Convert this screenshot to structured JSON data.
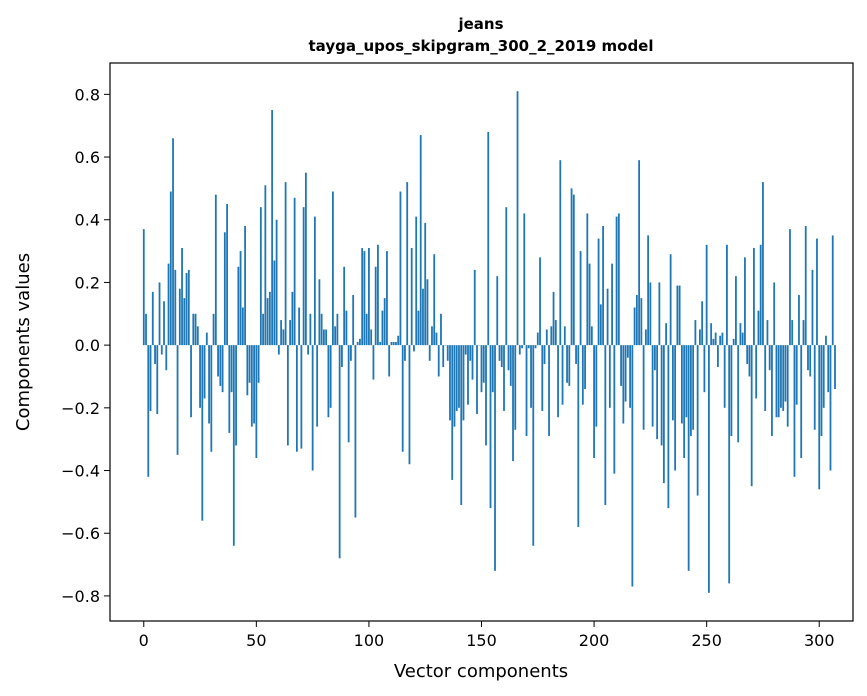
{
  "chart_data": {
    "type": "bar",
    "title": "jeans",
    "subtitle": "tayga_upos_skipgram_300_2_2019 model",
    "xlabel": "Vector components",
    "ylabel": "Components values",
    "xlim": [
      -15,
      315
    ],
    "ylim": [
      -0.88,
      0.9
    ],
    "xticks": [
      0,
      50,
      100,
      150,
      200,
      250,
      300
    ],
    "yticks": [
      -0.8,
      -0.6,
      -0.4,
      -0.2,
      0.0,
      0.2,
      0.4,
      0.6,
      0.8
    ],
    "ytick_labels": [
      "−0.8",
      "−0.6",
      "−0.4",
      "−0.2",
      "0.0",
      "0.2",
      "0.4",
      "0.6",
      "0.8"
    ],
    "bar_color": "#1f77b4",
    "grid": false,
    "values": [
      0.37,
      0.1,
      -0.42,
      -0.21,
      0.17,
      -0.06,
      -0.22,
      0.2,
      -0.03,
      0.14,
      -0.08,
      0.26,
      0.49,
      0.66,
      0.24,
      -0.35,
      0.18,
      0.31,
      0.15,
      0.23,
      0.24,
      -0.23,
      0.1,
      0.1,
      0.06,
      -0.2,
      -0.56,
      -0.17,
      0.04,
      -0.25,
      -0.34,
      0.1,
      0.48,
      -0.1,
      -0.13,
      -0.15,
      0.36,
      0.45,
      -0.28,
      -0.15,
      -0.64,
      -0.32,
      0.25,
      0.3,
      0.12,
      0.38,
      -0.16,
      -0.12,
      -0.26,
      -0.25,
      -0.36,
      -0.12,
      0.44,
      0.1,
      0.51,
      0.15,
      0.17,
      0.75,
      0.27,
      0.4,
      -0.03,
      0.08,
      0.05,
      0.52,
      -0.32,
      0.08,
      0.17,
      0.47,
      -0.34,
      0.12,
      -0.33,
      0.44,
      0.55,
      -0.03,
      0.1,
      -0.4,
      0.41,
      -0.26,
      0.21,
      0.1,
      0.05,
      0.05,
      -0.23,
      -0.2,
      0.49,
      0.06,
      0.1,
      -0.68,
      -0.07,
      0.25,
      0.11,
      -0.31,
      -0.05,
      0.16,
      -0.55,
      0.01,
      0.02,
      0.31,
      0.3,
      0.1,
      0.31,
      0.05,
      -0.11,
      0.25,
      0.32,
      0.01,
      0.11,
      0.15,
      0.3,
      -0.1,
      0.01,
      0.01,
      0.01,
      0.03,
      0.49,
      -0.34,
      -0.05,
      0.52,
      -0.38,
      0.31,
      -0.02,
      0.41,
      0.11,
      0.67,
      0.18,
      0.39,
      0.21,
      -0.05,
      0.06,
      0.29,
      0.04,
      -0.1,
      0.1,
      -0.07,
      0.0,
      -0.05,
      -0.24,
      -0.43,
      -0.26,
      -0.21,
      -0.2,
      -0.51,
      -0.24,
      -0.03,
      -0.19,
      -0.05,
      -0.11,
      0.24,
      -0.22,
      0.0,
      -0.15,
      -0.12,
      -0.32,
      0.68,
      -0.52,
      -0.15,
      -0.72,
      0.22,
      -0.05,
      -0.07,
      -0.21,
      0.44,
      -0.08,
      -0.13,
      -0.37,
      -0.27,
      0.81,
      -0.03,
      -0.01,
      0.42,
      -0.29,
      -0.01,
      -0.2,
      -0.64,
      -0.01,
      0.04,
      0.28,
      -0.21,
      -0.06,
      0.05,
      -0.29,
      0.06,
      0.17,
      0.08,
      -0.23,
      0.59,
      -0.19,
      0.06,
      -0.12,
      -0.13,
      0.5,
      0.48,
      -0.06,
      -0.58,
      0.3,
      -0.19,
      -0.14,
      0.42,
      0.26,
      0.06,
      -0.36,
      -0.26,
      0.34,
      0.13,
      0.38,
      -0.51,
      0.18,
      -0.2,
      0.26,
      -0.41,
      0.41,
      0.42,
      -0.13,
      -0.25,
      -0.18,
      -0.04,
      -0.2,
      -0.77,
      0.12,
      0.16,
      0.59,
      0.15,
      -0.27,
      0.05,
      0.35,
      0.2,
      -0.26,
      -0.08,
      -0.3,
      0.2,
      -0.32,
      -0.44,
      0.07,
      -0.52,
      0.29,
      -0.24,
      -0.4,
      0.19,
      0.19,
      -0.25,
      -0.36,
      -0.23,
      -0.72,
      -0.29,
      -0.27,
      0.08,
      -0.48,
      0.05,
      0.14,
      -0.15,
      0.32,
      -0.79,
      0.07,
      0.02,
      0.04,
      -0.07,
      0.03,
      0.04,
      -0.2,
      0.32,
      -0.76,
      -0.29,
      0.02,
      0.22,
      -0.31,
      0.07,
      0.04,
      0.28,
      -0.06,
      -0.1,
      -0.45,
      0.31,
      -0.17,
      0.11,
      0.32,
      0.52,
      -0.21,
      0.08,
      -0.08,
      -0.29,
      0.2,
      -0.23,
      -0.23,
      -0.2,
      -0.21,
      -0.18,
      -0.26,
      0.37,
      0.08,
      -0.42,
      -0.19,
      0.16,
      -0.36,
      0.08,
      0.38,
      -0.08,
      -0.1,
      0.24,
      -0.27,
      0.34,
      -0.46,
      -0.29,
      -0.2,
      0.03,
      -0.15,
      -0.4,
      0.35,
      -0.14
    ]
  }
}
